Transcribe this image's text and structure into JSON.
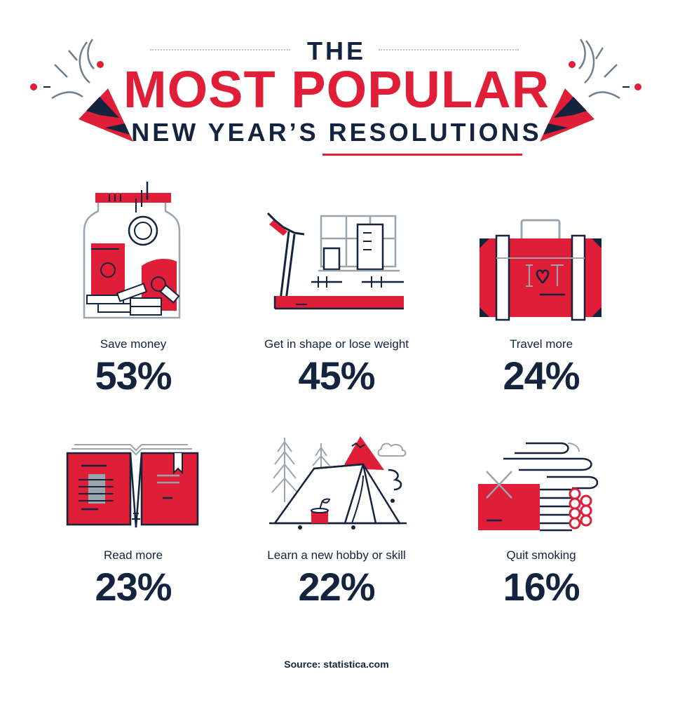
{
  "header": {
    "the": "THE",
    "main": "MOST POPULAR",
    "sub": "NEW YEAR’S RESOLUTIONS"
  },
  "resolutions": [
    {
      "label": "Save money",
      "percent": "53%",
      "icon": "money-jar-icon"
    },
    {
      "label": "Get in shape or lose weight",
      "percent": "45%",
      "icon": "treadmill-icon"
    },
    {
      "label": "Travel more",
      "percent": "24%",
      "icon": "suitcase-icon"
    },
    {
      "label": "Read more",
      "percent": "23%",
      "icon": "book-icon"
    },
    {
      "label": "Learn a new hobby or skill",
      "percent": "22%",
      "icon": "tent-icon"
    },
    {
      "label": "Quit smoking",
      "percent": "16%",
      "icon": "cigarettes-icon"
    }
  ],
  "source": "Source: statistica.com",
  "colors": {
    "red": "#e01e37",
    "navy": "#14233e",
    "grey": "#9aa5ad"
  }
}
